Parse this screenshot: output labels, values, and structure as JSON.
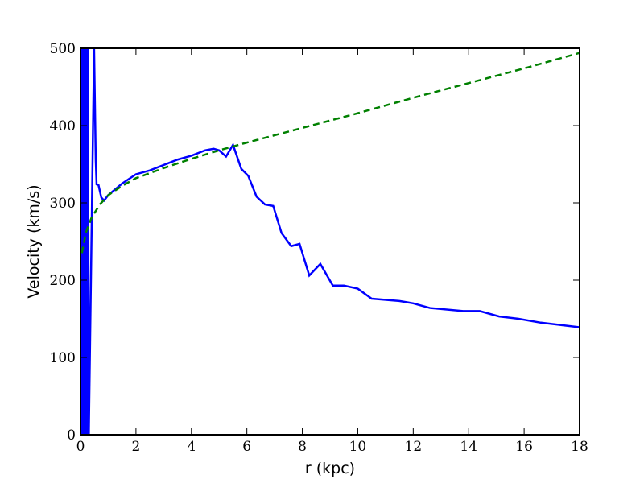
{
  "chart_data": {
    "type": "line",
    "xlabel": "r (kpc)",
    "ylabel": "Velocity (km/s)",
    "xlim": [
      0,
      18
    ],
    "ylim": [
      0,
      500
    ],
    "xticks": [
      0,
      2,
      4,
      6,
      8,
      10,
      12,
      14,
      16,
      18
    ],
    "yticks": [
      0,
      100,
      200,
      300,
      400,
      500
    ],
    "series": [
      {
        "color": "#0000ff",
        "dash": false,
        "x": [
          0.0,
          0.03,
          0.06,
          0.09,
          0.12,
          0.15,
          0.18,
          0.21,
          0.24,
          0.27,
          0.3,
          0.49,
          0.55,
          0.58,
          0.65,
          0.75,
          0.85,
          1.0,
          1.5,
          2.0,
          2.5,
          3.0,
          3.5,
          4.0,
          4.5,
          4.8,
          5.0,
          5.25,
          5.5,
          5.8,
          6.05,
          6.35,
          6.65,
          6.95,
          7.25,
          7.6,
          7.9,
          8.25,
          8.65,
          9.1,
          9.5,
          10.0,
          10.5,
          11.5,
          12.0,
          12.6,
          13.8,
          14.4,
          15.1,
          15.8,
          16.6,
          18.0
        ],
        "values": [
          0,
          500,
          0,
          500,
          0,
          500,
          0,
          500,
          0,
          500,
          0,
          500,
          355,
          324,
          323,
          307,
          303,
          310,
          325,
          337,
          342,
          349,
          356,
          361,
          368,
          370,
          368,
          360,
          375,
          344,
          335,
          308,
          298,
          296,
          261,
          244,
          247,
          206,
          221,
          193,
          193,
          189,
          176,
          173,
          170,
          164,
          160,
          160,
          153,
          150,
          145,
          139
        ]
      },
      {
        "color": "#008000",
        "dash": true,
        "x": [
          0.05,
          0.2,
          0.4,
          0.7,
          1,
          1.5,
          2,
          3,
          4,
          5,
          6,
          8,
          10,
          12,
          14,
          16,
          18
        ],
        "values": [
          235,
          262,
          281,
          298,
          310,
          322,
          332,
          345,
          357,
          368,
          378,
          397,
          416,
          436,
          455,
          474,
          494
        ]
      }
    ]
  }
}
